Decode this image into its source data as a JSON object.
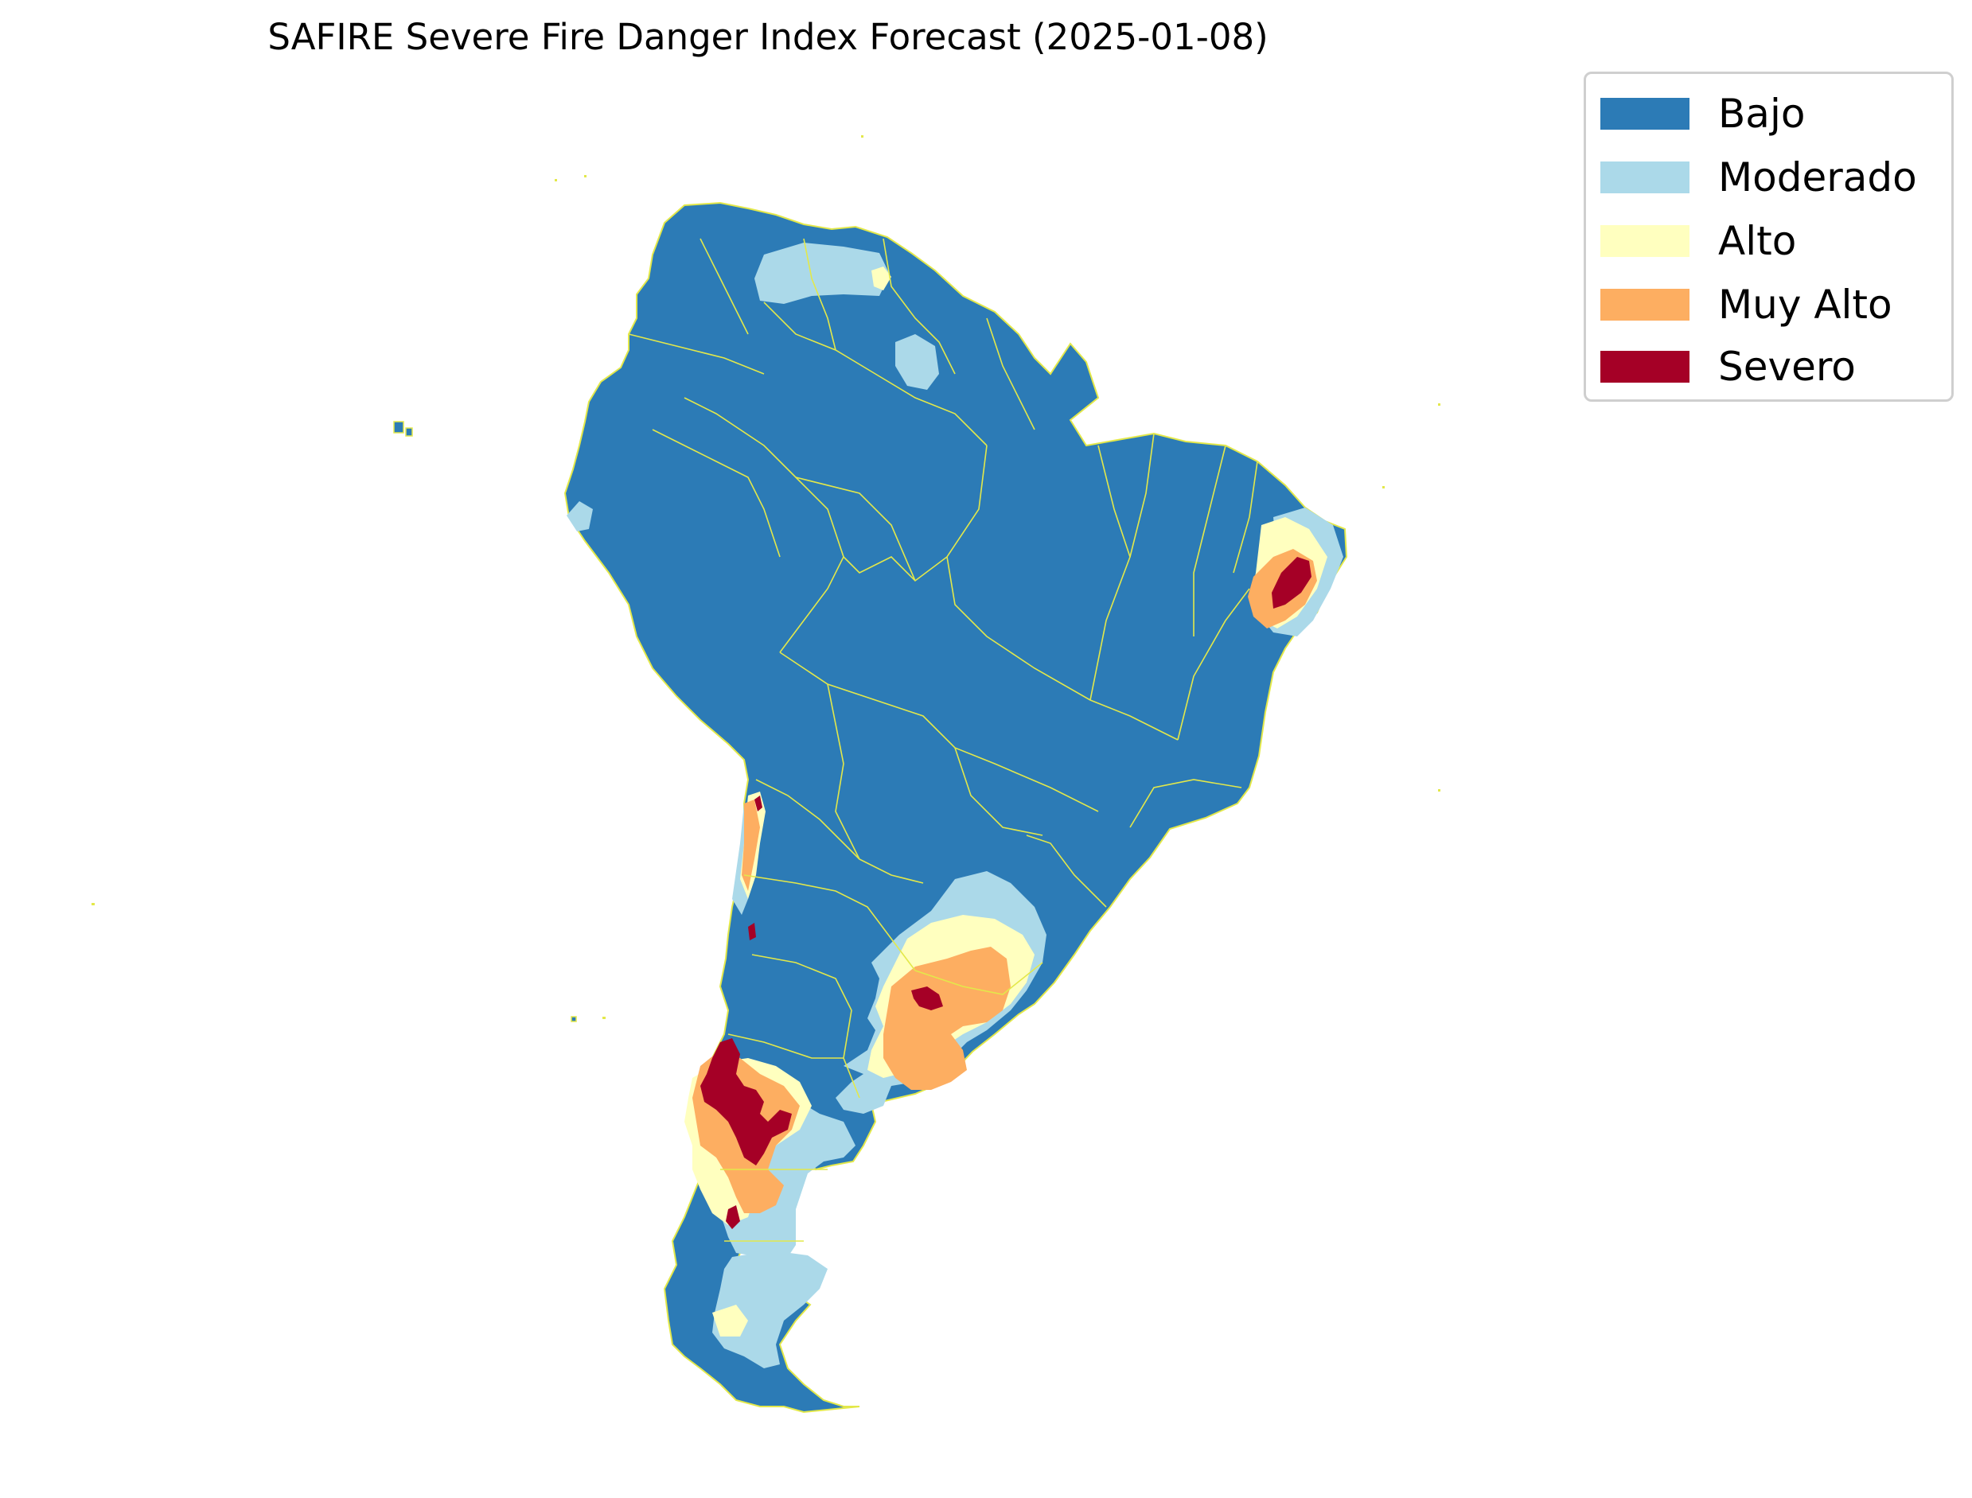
{
  "title": "SAFIRE Severe Fire Danger Index Forecast (2025-01-08)",
  "colors": {
    "border": "#e3e84a",
    "background": "#ffffff"
  },
  "legend": {
    "items": [
      {
        "label": "Bajo",
        "color": "#2c7bb6"
      },
      {
        "label": "Moderado",
        "color": "#abd9e9"
      },
      {
        "label": "Alto",
        "color": "#ffffbf"
      },
      {
        "label": "Muy Alto",
        "color": "#fdae61"
      },
      {
        "label": "Severo",
        "color": "#a50026"
      }
    ]
  }
}
